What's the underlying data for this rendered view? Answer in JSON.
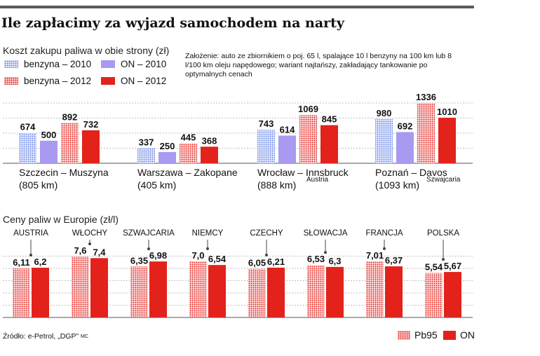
{
  "title": "Ile zapłacimy za wyjazd samochodem na narty",
  "colors": {
    "benzyna_2010": "#8aa2ee",
    "on_2010": "#a89af0",
    "benzyna_2012": "#f08c8c",
    "on_2012": "#e3221b",
    "grid": "#aaaaaa"
  },
  "source": "Źródło: e-Petrol, „DGP”",
  "author": "MC",
  "note": "Założenie: auto ze zbiornikiem o poj. 65 l, spalające 10 l benzyny na 100 km lub 8 l/100 km oleju napędowego; wariant najtańszy, zakładający tankowanie po optymalnych cenach",
  "chart_data": [
    {
      "type": "bar",
      "title": "Koszt zakupu paliwa w obie strony (zł)",
      "categories": [
        "Szczecin – Muszyna",
        "Warszawa – Zakopane",
        "Wrocław – Innsbruck",
        "Poznań – Davos"
      ],
      "distances": [
        "(805 km)",
        "(405 km)",
        "(888 km)",
        "(1093 km)"
      ],
      "countries": [
        "",
        "",
        "Austria",
        "Szwajcaria"
      ],
      "series": [
        {
          "name": "benzyna – 2010",
          "values": [
            674,
            337,
            743,
            980
          ]
        },
        {
          "name": "ON – 2010",
          "values": [
            500,
            250,
            614,
            692
          ]
        },
        {
          "name": "benzyna – 2012",
          "values": [
            892,
            445,
            1069,
            1336
          ]
        },
        {
          "name": "ON – 2012",
          "values": [
            732,
            368,
            845,
            1010
          ]
        }
      ]
    },
    {
      "type": "bar",
      "title": "Ceny paliw w Europie (zł/l)",
      "categories": [
        "AUSTRIA",
        "WŁOCHY",
        "SZWAJCARIA",
        "NIEMCY",
        "CZECHY",
        "SŁOWACJA",
        "FRANCJA",
        "POLSKA"
      ],
      "series": [
        {
          "name": "Pb95",
          "values": [
            6.11,
            7.6,
            6.35,
            7.0,
            6.05,
            6.53,
            7.01,
            5.54
          ],
          "labels": [
            "6,11",
            "7,6",
            "6,35",
            "7,0",
            "6,05",
            "6,53",
            "7,01",
            "5,54"
          ]
        },
        {
          "name": "ON",
          "values": [
            6.2,
            7.4,
            6.98,
            6.54,
            6.21,
            6.3,
            6.37,
            5.67
          ],
          "labels": [
            "6,2",
            "7,4",
            "6,98",
            "6,54",
            "6,21",
            "6,3",
            "6,37",
            "5,67"
          ]
        }
      ]
    }
  ]
}
